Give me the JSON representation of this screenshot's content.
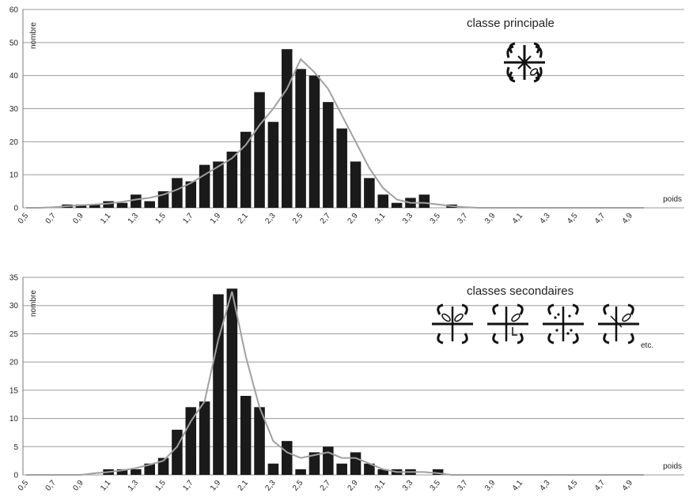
{
  "chart_data": [
    {
      "type": "bar",
      "title": "classe principale",
      "xlabel": "poids",
      "ylabel": "nombre",
      "ylim": [
        0,
        60
      ],
      "yticks": [
        "0",
        "10",
        "20",
        "30",
        "40",
        "50",
        "60"
      ],
      "grid": true,
      "xtick_labels": [
        "0,5",
        "0,7",
        "0,9",
        "1,1",
        "1,3",
        "1,5",
        "1,7",
        "1,9",
        "2,1",
        "2,3",
        "2,5",
        "2,7",
        "2,9",
        "3,1",
        "3,3",
        "3,5",
        "3,7",
        "3,9",
        "4,1",
        "4,3",
        "4,5",
        "4,7",
        "4,9"
      ],
      "x": [
        0.5,
        0.6,
        0.7,
        0.8,
        0.9,
        1.0,
        1.1,
        1.2,
        1.3,
        1.4,
        1.5,
        1.6,
        1.7,
        1.8,
        1.9,
        2.0,
        2.1,
        2.2,
        2.3,
        2.4,
        2.5,
        2.6,
        2.7,
        2.8,
        2.9,
        3.0,
        3.1,
        3.2,
        3.3,
        3.4,
        3.5,
        3.6,
        3.7,
        3.8,
        3.9,
        4.0,
        4.1,
        4.2,
        4.3,
        4.4,
        4.5,
        4.6,
        4.7,
        4.8,
        4.9,
        5.0
      ],
      "series": [
        {
          "kind": "bar",
          "color": "#1a1a1a",
          "values": [
            0,
            0,
            0,
            1,
            1,
            1,
            2,
            1.5,
            4,
            2,
            5,
            9,
            8,
            13,
            14,
            17,
            23,
            35,
            26,
            48,
            42,
            40,
            32,
            24,
            14,
            9,
            4,
            1.5,
            3,
            4,
            0,
            1,
            0,
            0,
            0,
            0,
            0,
            0,
            0,
            0,
            0,
            0,
            0,
            0,
            0,
            0
          ]
        },
        {
          "kind": "line",
          "color": "#a0a0a0",
          "values": [
            0,
            0,
            0.2,
            0.5,
            0.8,
            1,
            1.3,
            1.8,
            2.5,
            3,
            4,
            5.5,
            7.5,
            10,
            12.5,
            15,
            19,
            25,
            30,
            36,
            45,
            41,
            36,
            28,
            20,
            12,
            6,
            2.5,
            1.5,
            1.5,
            1,
            0.5,
            0.2,
            0,
            0,
            0,
            0,
            0,
            0,
            0,
            0,
            0,
            0,
            0,
            0,
            0
          ]
        }
      ]
    },
    {
      "type": "bar",
      "title": "classes secondaires",
      "annotation": "etc.",
      "xlabel": "poids",
      "ylabel": "nombre",
      "ylim": [
        0,
        35
      ],
      "yticks": [
        "0",
        "5",
        "10",
        "15",
        "20",
        "25",
        "30",
        "35"
      ],
      "grid": true,
      "xtick_labels": [
        "0,5",
        "0,7",
        "0,9",
        "1,1",
        "1,3",
        "1,5",
        "1,7",
        "1,9",
        "2,1",
        "2,3",
        "2,5",
        "2,7",
        "2,9",
        "3,1",
        "3,3",
        "3,5",
        "3,7",
        "3,9",
        "4,1",
        "4,3",
        "4,5",
        "4,7",
        "4,9"
      ],
      "x": [
        0.5,
        0.6,
        0.7,
        0.8,
        0.9,
        1.0,
        1.1,
        1.2,
        1.3,
        1.4,
        1.5,
        1.6,
        1.7,
        1.8,
        1.9,
        2.0,
        2.1,
        2.2,
        2.3,
        2.4,
        2.5,
        2.6,
        2.7,
        2.8,
        2.9,
        3.0,
        3.1,
        3.2,
        3.3,
        3.4,
        3.5,
        3.6,
        3.7,
        3.8,
        3.9,
        4.0,
        4.1,
        4.2,
        4.3,
        4.4,
        4.5,
        4.6,
        4.7,
        4.8,
        4.9,
        5.0
      ],
      "series": [
        {
          "kind": "bar",
          "color": "#1a1a1a",
          "values": [
            0,
            0,
            0,
            0,
            0,
            0,
            1,
            1,
            1,
            2,
            3,
            8,
            12,
            13,
            32,
            33,
            14,
            12,
            2,
            6,
            1,
            4,
            5,
            2,
            4,
            2,
            1,
            1,
            1,
            0,
            1,
            0,
            0,
            0,
            0,
            0,
            0,
            0,
            0,
            0,
            0,
            0,
            0,
            0,
            0,
            0
          ]
        },
        {
          "kind": "line",
          "color": "#a0a0a0",
          "values": [
            0,
            0,
            0,
            0,
            0,
            0.3,
            0.5,
            0.8,
            1.2,
            1.8,
            2.5,
            5,
            9.5,
            13,
            24,
            32.5,
            21,
            12,
            6,
            4,
            3,
            3.5,
            4,
            3,
            3,
            2,
            1,
            0.5,
            0.5,
            0.5,
            0.3,
            0,
            0,
            0,
            0,
            0,
            0,
            0,
            0,
            0,
            0,
            0,
            0,
            0,
            0,
            0
          ]
        }
      ]
    }
  ],
  "icons": {
    "main": [
      "cross-symbol-icon"
    ],
    "secondary": [
      "cross-symbol-variant-1-icon",
      "cross-symbol-variant-2-icon",
      "cross-symbol-variant-3-icon",
      "cross-symbol-variant-4-icon"
    ]
  }
}
